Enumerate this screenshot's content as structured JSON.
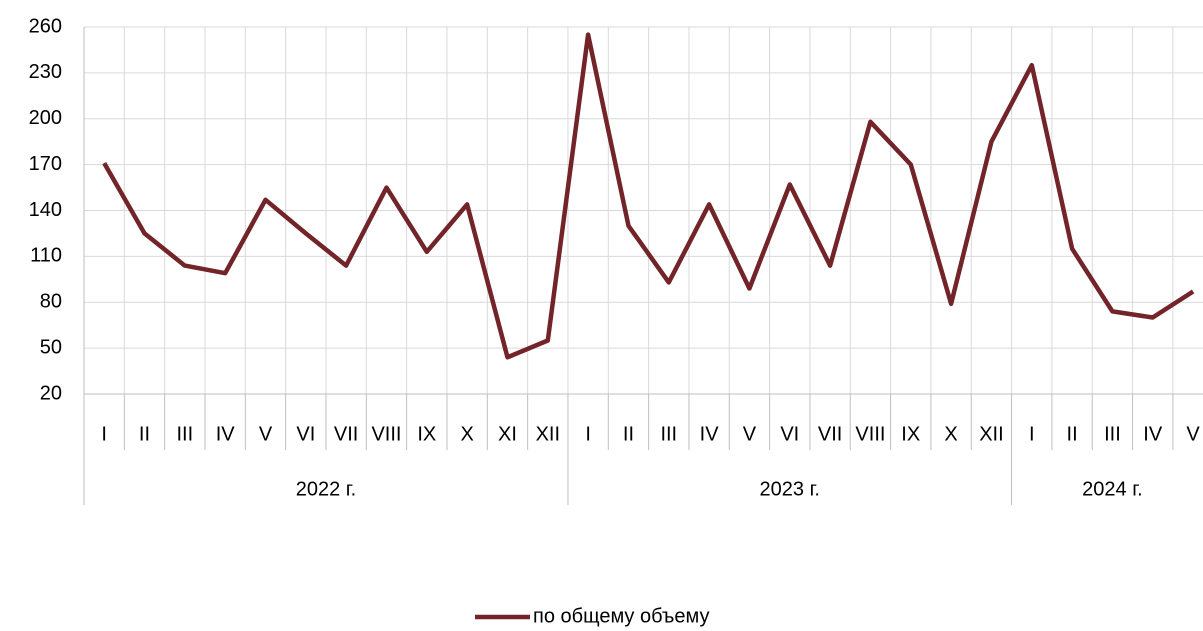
{
  "chart_data": {
    "type": "line",
    "category_groups": [
      {
        "name": "2022 г.",
        "categories": [
          "I",
          "II",
          "III",
          "IV",
          "V",
          "VI",
          "VII",
          "VIII",
          "IX",
          "X",
          "XI",
          "XII"
        ]
      },
      {
        "name": "2023 г.",
        "categories": [
          "I",
          "II",
          "III",
          "IV",
          "V",
          "VI",
          "VII",
          "VIII",
          "IX",
          "X",
          "XII"
        ]
      },
      {
        "name": "2024 г.",
        "categories": [
          "I",
          "II",
          "III",
          "IV",
          "V"
        ]
      }
    ],
    "series": [
      {
        "name": "по общему объему",
        "color": "#722428",
        "values": [
          171,
          125,
          104,
          99,
          147,
          125,
          104,
          155,
          113,
          144,
          44,
          55,
          255,
          130,
          93,
          144,
          89,
          157,
          104,
          198,
          170,
          79,
          185,
          235,
          115,
          74,
          70,
          87
        ]
      }
    ],
    "ylim": [
      20,
      260
    ],
    "yticks": [
      20,
      50,
      80,
      110,
      140,
      170,
      200,
      230,
      260
    ],
    "grid": true,
    "legend": "bottom"
  }
}
